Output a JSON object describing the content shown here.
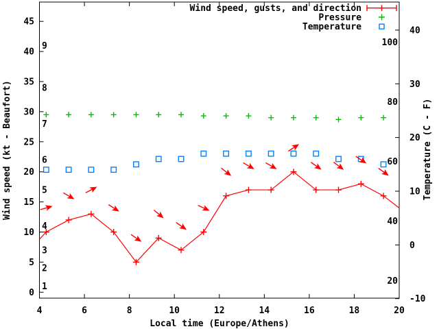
{
  "figure": {
    "background": "#ffffff",
    "text_color": "#000000"
  },
  "legend": {
    "position": "top-right-inside",
    "entries": [
      {
        "label": "Wind speed, gusts, and direction",
        "color": "#ff0000",
        "sample": "line-with-plus-and-endcaps"
      },
      {
        "label": "Pressure",
        "color": "#00c000",
        "sample": "plus"
      },
      {
        "label": "Temperature",
        "color": "#0080ff",
        "sample": "open-square"
      }
    ]
  },
  "chart_data": {
    "type": "line",
    "title": "",
    "xlabel": "Local time (Europe/Athens)",
    "ylabel_left": "Wind speed (kt - Beaufort)",
    "ylabel_right": "Temperature (C - F)",
    "xlim": [
      4,
      20
    ],
    "x_ticks": [
      4,
      6,
      8,
      10,
      12,
      14,
      16,
      18,
      20
    ],
    "ylim_left_kt": [
      0,
      45
    ],
    "left_ticks_kt": [
      0,
      5,
      10,
      15,
      20,
      25,
      30,
      35,
      40,
      45
    ],
    "ylim_right_c": [
      -10,
      40
    ],
    "right_ticks_celsius": [
      -10,
      0,
      10,
      20,
      30,
      40
    ],
    "inner_fahrenheit_labels": [
      100,
      80,
      60,
      40,
      20
    ],
    "beaufort_scale_labels": [
      {
        "bft": "1",
        "kt": 1
      },
      {
        "bft": "2",
        "kt": 4
      },
      {
        "bft": "3",
        "kt": 7
      },
      {
        "bft": "4",
        "kt": 11
      },
      {
        "bft": "5",
        "kt": 17
      },
      {
        "bft": "6",
        "kt": 22
      },
      {
        "bft": "7",
        "kt": 28
      },
      {
        "bft": "8",
        "kt": 34
      },
      {
        "bft": "9",
        "kt": 41
      }
    ],
    "grid": false,
    "x": [
      4.3,
      5.3,
      6.3,
      7.3,
      8.3,
      9.3,
      10.3,
      11.3,
      12.3,
      13.3,
      14.3,
      15.3,
      16.3,
      17.3,
      18.3,
      19.3
    ],
    "series": [
      {
        "name": "Wind speed",
        "unit": "kt",
        "axis": "left",
        "color": "#ff0000",
        "style": "linespoints",
        "marker": "plus",
        "values": [
          10,
          12,
          13,
          10,
          5,
          9,
          7,
          10,
          16,
          17,
          17,
          20,
          17,
          17,
          18,
          16
        ],
        "edge_points": [
          {
            "x": 4.0,
            "value": 8.8
          },
          {
            "x": 20.0,
            "value": 14.0
          }
        ]
      },
      {
        "name": "Wind gusts and direction",
        "unit": "kt",
        "axis": "left",
        "color": "#ff0000",
        "style": "vectors",
        "marker": "arrow",
        "values": [
          14,
          16,
          17,
          14,
          9,
          13,
          11,
          14,
          20,
          21,
          21,
          24,
          21,
          21,
          22,
          20
        ],
        "arrow_angles_deg_screen": [
          -16,
          30,
          -28,
          33,
          35,
          40,
          35,
          25,
          38,
          30,
          30,
          -33,
          35,
          37,
          34,
          36
        ]
      },
      {
        "name": "Pressure",
        "unit": "inHg (plotted on left axis)",
        "axis": "left",
        "color": "#00c000",
        "style": "points",
        "marker": "plus",
        "values": [
          29.5,
          29.5,
          29.5,
          29.5,
          29.5,
          29.5,
          29.5,
          29.3,
          29.3,
          29.3,
          29.0,
          29.0,
          29.0,
          28.7,
          29.0,
          29.0
        ]
      },
      {
        "name": "Temperature",
        "unit": "C",
        "axis": "right",
        "color": "#0080ff",
        "style": "points",
        "marker": "open-square",
        "values": [
          14,
          14,
          14,
          14,
          15,
          16,
          16,
          17,
          17,
          17,
          17,
          17,
          17,
          16,
          16,
          15
        ]
      }
    ]
  }
}
